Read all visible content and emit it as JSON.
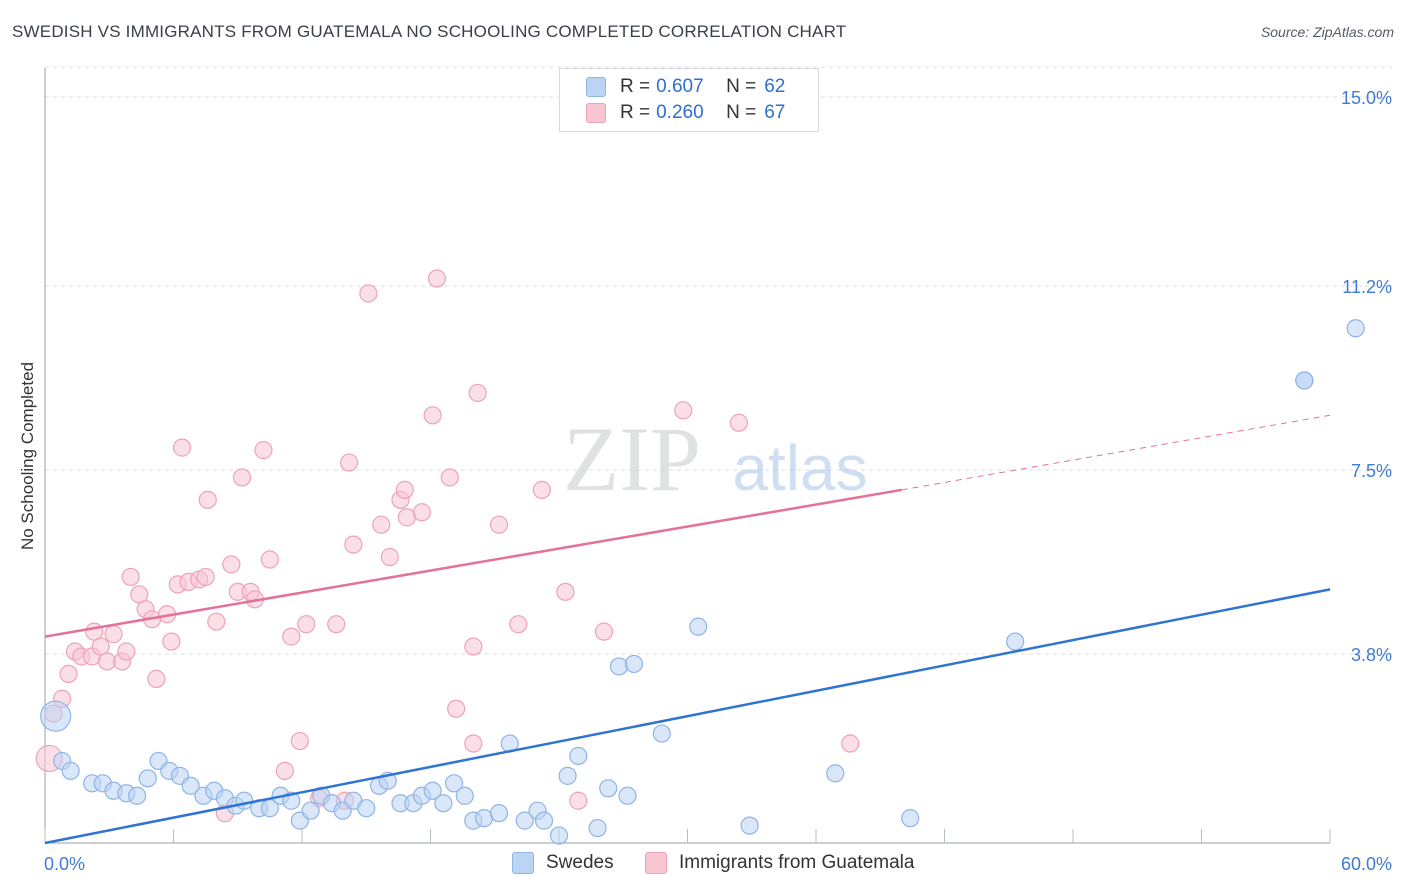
{
  "header": {
    "title": "SWEDISH VS IMMIGRANTS FROM GUATEMALA NO SCHOOLING COMPLETED CORRELATION CHART",
    "source": "Source: ZipAtlas.com"
  },
  "legend": {
    "rows": [
      {
        "r_label": "R =",
        "r_value": "0.607",
        "n_label": "N =",
        "n_value": "62"
      },
      {
        "r_label": "R =",
        "r_value": "0.260",
        "n_label": "N =",
        "n_value": "67"
      }
    ]
  },
  "bottom_legend": {
    "swedes": "Swedes",
    "guatemala": "Immigrants from Guatemala"
  },
  "watermark": {
    "zip": "ZIP",
    "atlas": "atlas"
  },
  "colors": {
    "swedes_fill": "#bcd4f4",
    "swedes_stroke": "#8fb4e6",
    "swedes_line": "#2f74d0",
    "guatemala_fill": "#f8c5d3",
    "guatemala_stroke": "#eea2b8",
    "guatemala_line": "#e4719a",
    "tick_label": "#3f7bd4",
    "grid": "#d9dce1"
  },
  "chart_data": {
    "type": "scatter",
    "ylabel": "No Schooling Completed",
    "xlim": [
      0,
      60
    ],
    "ylim": [
      0,
      15.6
    ],
    "x_tick_labels": [
      "0.0%",
      "60.0%"
    ],
    "y_ticks": [
      3.8,
      7.5,
      11.2,
      15.0
    ],
    "y_tick_labels": [
      "3.8%",
      "7.5%",
      "11.2%",
      "15.0%"
    ],
    "series": [
      {
        "name": "Swedes",
        "r": 0.607,
        "n": 62,
        "trend": {
          "x": [
            0,
            60
          ],
          "y": [
            0.0,
            5.1
          ]
        },
        "points": [
          [
            0.5,
            2.55
          ],
          [
            0.8,
            1.65
          ],
          [
            1.2,
            1.45
          ],
          [
            2.2,
            1.2
          ],
          [
            2.7,
            1.2
          ],
          [
            3.2,
            1.05
          ],
          [
            3.8,
            1.0
          ],
          [
            4.3,
            0.95
          ],
          [
            4.8,
            1.3
          ],
          [
            5.3,
            1.65
          ],
          [
            5.8,
            1.45
          ],
          [
            6.3,
            1.35
          ],
          [
            6.8,
            1.15
          ],
          [
            7.4,
            0.95
          ],
          [
            7.9,
            1.05
          ],
          [
            8.4,
            0.9
          ],
          [
            8.9,
            0.75
          ],
          [
            9.3,
            0.85
          ],
          [
            10.0,
            0.7
          ],
          [
            10.5,
            0.7
          ],
          [
            11.0,
            0.95
          ],
          [
            11.5,
            0.85
          ],
          [
            11.9,
            0.45
          ],
          [
            12.4,
            0.65
          ],
          [
            12.9,
            0.95
          ],
          [
            13.4,
            0.8
          ],
          [
            13.9,
            0.65
          ],
          [
            14.4,
            0.85
          ],
          [
            15.0,
            0.7
          ],
          [
            15.6,
            1.15
          ],
          [
            16.0,
            1.25
          ],
          [
            16.6,
            0.8
          ],
          [
            17.2,
            0.8
          ],
          [
            17.6,
            0.95
          ],
          [
            18.1,
            1.05
          ],
          [
            18.6,
            0.8
          ],
          [
            19.1,
            1.2
          ],
          [
            19.6,
            0.95
          ],
          [
            20.0,
            0.45
          ],
          [
            20.5,
            0.5
          ],
          [
            21.2,
            0.6
          ],
          [
            21.7,
            2.0
          ],
          [
            22.4,
            0.45
          ],
          [
            23.0,
            0.65
          ],
          [
            23.3,
            0.45
          ],
          [
            24.0,
            0.15
          ],
          [
            24.4,
            1.35
          ],
          [
            24.9,
            1.75
          ],
          [
            25.8,
            0.3
          ],
          [
            26.3,
            1.1
          ],
          [
            26.8,
            3.55
          ],
          [
            27.2,
            0.95
          ],
          [
            27.5,
            3.6
          ],
          [
            28.8,
            2.2
          ],
          [
            30.5,
            4.35
          ],
          [
            32.9,
            0.35
          ],
          [
            36.9,
            1.4
          ],
          [
            40.4,
            0.5
          ],
          [
            45.3,
            4.05
          ],
          [
            58.8,
            9.3
          ],
          [
            58.8,
            9.3
          ],
          [
            61.2,
            10.35
          ]
        ]
      },
      {
        "name": "Immigrants from Guatemala",
        "r": 0.26,
        "n": 67,
        "trend": {
          "x": [
            0,
            40
          ],
          "y": [
            4.15,
            7.1
          ]
        },
        "trend_dashed": {
          "x": [
            40,
            60
          ],
          "y": [
            7.1,
            8.6
          ]
        },
        "points": [
          [
            0.2,
            1.7
          ],
          [
            0.8,
            2.9
          ],
          [
            1.1,
            3.4
          ],
          [
            1.4,
            3.85
          ],
          [
            1.7,
            3.75
          ],
          [
            2.2,
            3.75
          ],
          [
            2.3,
            4.25
          ],
          [
            2.6,
            3.95
          ],
          [
            2.9,
            3.65
          ],
          [
            3.2,
            4.2
          ],
          [
            3.6,
            3.65
          ],
          [
            3.8,
            3.85
          ],
          [
            4.0,
            5.35
          ],
          [
            4.4,
            5.0
          ],
          [
            4.7,
            4.7
          ],
          [
            5.0,
            4.5
          ],
          [
            5.2,
            3.3
          ],
          [
            5.7,
            4.6
          ],
          [
            5.9,
            4.05
          ],
          [
            6.2,
            5.2
          ],
          [
            6.4,
            7.95
          ],
          [
            6.7,
            5.25
          ],
          [
            7.2,
            5.3
          ],
          [
            7.5,
            5.35
          ],
          [
            7.6,
            6.9
          ],
          [
            8.0,
            4.45
          ],
          [
            8.4,
            0.6
          ],
          [
            8.7,
            5.6
          ],
          [
            9.0,
            5.05
          ],
          [
            9.2,
            7.35
          ],
          [
            9.6,
            5.05
          ],
          [
            9.8,
            4.9
          ],
          [
            10.2,
            7.9
          ],
          [
            10.5,
            5.7
          ],
          [
            11.2,
            1.45
          ],
          [
            11.5,
            4.15
          ],
          [
            11.9,
            2.05
          ],
          [
            12.2,
            4.4
          ],
          [
            12.8,
            0.9
          ],
          [
            13.6,
            4.4
          ],
          [
            14.0,
            0.85
          ],
          [
            14.2,
            7.65
          ],
          [
            14.4,
            6.0
          ],
          [
            15.1,
            11.05
          ],
          [
            15.7,
            6.4
          ],
          [
            16.1,
            5.75
          ],
          [
            16.6,
            6.9
          ],
          [
            16.9,
            6.55
          ],
          [
            16.8,
            7.1
          ],
          [
            17.6,
            6.65
          ],
          [
            18.1,
            8.6
          ],
          [
            18.3,
            11.35
          ],
          [
            18.9,
            7.35
          ],
          [
            19.2,
            2.7
          ],
          [
            20.0,
            3.95
          ],
          [
            20.0,
            2.0
          ],
          [
            20.2,
            9.05
          ],
          [
            21.2,
            6.4
          ],
          [
            22.1,
            4.4
          ],
          [
            23.2,
            7.1
          ],
          [
            24.3,
            5.05
          ],
          [
            24.9,
            0.85
          ],
          [
            26.1,
            4.25
          ],
          [
            29.8,
            8.7
          ],
          [
            32.4,
            8.45
          ],
          [
            37.6,
            2.0
          ],
          [
            0.4,
            2.6
          ]
        ]
      }
    ]
  }
}
